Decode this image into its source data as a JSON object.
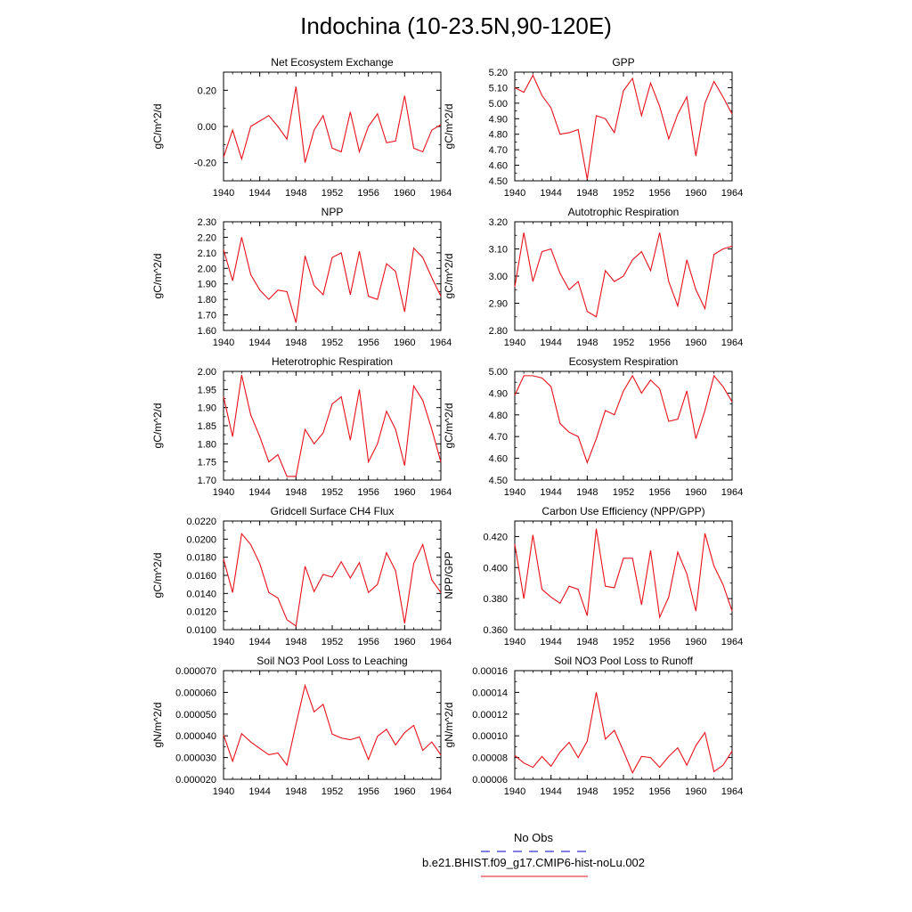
{
  "title": "Indochina (10-23.5N,90-120E)",
  "legend": {
    "items": [
      {
        "label": "No Obs",
        "color": "#3333cc",
        "style": "dashed"
      },
      {
        "label": "b.e21.BHIST.f09_g17.CMIP6-hist-noLu.002",
        "color": "#e8404a",
        "style": "solid"
      }
    ]
  },
  "chart_data": [
    {
      "type": "line",
      "title": "Net Ecosystem Exchange",
      "ylabel": "gC/m^2/d",
      "x": [
        1940,
        1941,
        1942,
        1943,
        1944,
        1945,
        1946,
        1947,
        1948,
        1949,
        1950,
        1951,
        1952,
        1953,
        1954,
        1955,
        1956,
        1957,
        1958,
        1959,
        1960,
        1961,
        1962,
        1963,
        1964
      ],
      "xticks": [
        1940,
        1944,
        1948,
        1952,
        1956,
        1960,
        1964
      ],
      "xlim": [
        1940,
        1964
      ],
      "ylim": [
        -0.3,
        0.3
      ],
      "yticks": [
        -0.2,
        0.0,
        0.2
      ],
      "ytick_labels": [
        "-0.20",
        "0.00",
        "0.20"
      ],
      "series": [
        {
          "color": "#e8101a",
          "values": [
            -0.17,
            -0.02,
            -0.18,
            0.0,
            0.03,
            0.06,
            0.0,
            -0.07,
            0.22,
            -0.2,
            -0.02,
            0.06,
            -0.12,
            -0.14,
            0.08,
            -0.14,
            0.0,
            0.07,
            -0.09,
            -0.08,
            0.17,
            -0.12,
            -0.14,
            -0.02,
            0.01
          ]
        }
      ]
    },
    {
      "type": "line",
      "title": "GPP",
      "ylabel": "gC/m^2/d",
      "x": [
        1940,
        1941,
        1942,
        1943,
        1944,
        1945,
        1946,
        1947,
        1948,
        1949,
        1950,
        1951,
        1952,
        1953,
        1954,
        1955,
        1956,
        1957,
        1958,
        1959,
        1960,
        1961,
        1962,
        1963,
        1964
      ],
      "xticks": [
        1940,
        1944,
        1948,
        1952,
        1956,
        1960,
        1964
      ],
      "xlim": [
        1940,
        1964
      ],
      "ylim": [
        4.5,
        5.2
      ],
      "yticks": [
        4.5,
        4.6,
        4.7,
        4.8,
        4.9,
        5.0,
        5.1,
        5.2
      ],
      "ytick_labels": [
        "4.50",
        "4.60",
        "4.70",
        "4.80",
        "4.90",
        "5.00",
        "5.10",
        "5.20"
      ],
      "series": [
        {
          "color": "#e8101a",
          "values": [
            5.1,
            5.07,
            5.18,
            5.05,
            4.97,
            4.8,
            4.81,
            4.83,
            4.51,
            4.92,
            4.9,
            4.81,
            5.08,
            5.16,
            4.92,
            5.13,
            4.98,
            4.77,
            4.93,
            5.04,
            4.66,
            5.0,
            5.14,
            5.04,
            4.93
          ]
        }
      ]
    },
    {
      "type": "line",
      "title": "NPP",
      "ylabel": "gC/m^2/d",
      "x": [
        1940,
        1941,
        1942,
        1943,
        1944,
        1945,
        1946,
        1947,
        1948,
        1949,
        1950,
        1951,
        1952,
        1953,
        1954,
        1955,
        1956,
        1957,
        1958,
        1959,
        1960,
        1961,
        1962,
        1963,
        1964
      ],
      "xticks": [
        1940,
        1944,
        1948,
        1952,
        1956,
        1960,
        1964
      ],
      "xlim": [
        1940,
        1964
      ],
      "ylim": [
        1.6,
        2.3
      ],
      "yticks": [
        1.6,
        1.7,
        1.8,
        1.9,
        2.0,
        2.1,
        2.2,
        2.3
      ],
      "ytick_labels": [
        "1.60",
        "1.70",
        "1.80",
        "1.90",
        "2.00",
        "2.10",
        "2.20",
        "2.30"
      ],
      "series": [
        {
          "color": "#e8101a",
          "values": [
            2.12,
            1.92,
            2.2,
            1.96,
            1.86,
            1.8,
            1.86,
            1.85,
            1.65,
            2.08,
            1.89,
            1.83,
            2.07,
            2.1,
            1.83,
            2.11,
            1.82,
            1.8,
            2.03,
            1.98,
            1.72,
            2.13,
            2.07,
            1.94,
            1.82
          ]
        }
      ]
    },
    {
      "type": "line",
      "title": "Autotrophic Respiration",
      "ylabel": "gC/m^2/d",
      "x": [
        1940,
        1941,
        1942,
        1943,
        1944,
        1945,
        1946,
        1947,
        1948,
        1949,
        1950,
        1951,
        1952,
        1953,
        1954,
        1955,
        1956,
        1957,
        1958,
        1959,
        1960,
        1961,
        1962,
        1963,
        1964
      ],
      "xticks": [
        1940,
        1944,
        1948,
        1952,
        1956,
        1960,
        1964
      ],
      "xlim": [
        1940,
        1964
      ],
      "ylim": [
        2.8,
        3.2
      ],
      "yticks": [
        2.8,
        2.9,
        3.0,
        3.1,
        3.2
      ],
      "ytick_labels": [
        "2.80",
        "2.90",
        "3.00",
        "3.10",
        "3.20"
      ],
      "series": [
        {
          "color": "#e8101a",
          "values": [
            2.96,
            3.16,
            2.98,
            3.09,
            3.1,
            3.01,
            2.95,
            2.98,
            2.87,
            2.85,
            3.02,
            2.98,
            3.0,
            3.06,
            3.09,
            3.02,
            3.16,
            2.98,
            2.89,
            3.06,
            2.95,
            2.88,
            3.08,
            3.1,
            3.11
          ]
        }
      ]
    },
    {
      "type": "line",
      "title": "Heterotrophic Respiration",
      "ylabel": "gC/m^2/d",
      "x": [
        1940,
        1941,
        1942,
        1943,
        1944,
        1945,
        1946,
        1947,
        1948,
        1949,
        1950,
        1951,
        1952,
        1953,
        1954,
        1955,
        1956,
        1957,
        1958,
        1959,
        1960,
        1961,
        1962,
        1963,
        1964
      ],
      "xticks": [
        1940,
        1944,
        1948,
        1952,
        1956,
        1960,
        1964
      ],
      "xlim": [
        1940,
        1964
      ],
      "ylim": [
        1.7,
        2.0
      ],
      "yticks": [
        1.7,
        1.75,
        1.8,
        1.85,
        1.9,
        1.95,
        2.0
      ],
      "ytick_labels": [
        "1.70",
        "1.75",
        "1.80",
        "1.85",
        "1.90",
        "1.95",
        "2.00"
      ],
      "series": [
        {
          "color": "#e8101a",
          "values": [
            1.93,
            1.82,
            1.99,
            1.88,
            1.82,
            1.75,
            1.77,
            1.71,
            1.71,
            1.84,
            1.8,
            1.83,
            1.91,
            1.93,
            1.81,
            1.95,
            1.75,
            1.8,
            1.89,
            1.84,
            1.74,
            1.96,
            1.92,
            1.84,
            1.75
          ]
        }
      ]
    },
    {
      "type": "line",
      "title": "Ecosystem Respiration",
      "ylabel": "gC/m^2/d",
      "x": [
        1940,
        1941,
        1942,
        1943,
        1944,
        1945,
        1946,
        1947,
        1948,
        1949,
        1950,
        1951,
        1952,
        1953,
        1954,
        1955,
        1956,
        1957,
        1958,
        1959,
        1960,
        1961,
        1962,
        1963,
        1964
      ],
      "xticks": [
        1940,
        1944,
        1948,
        1952,
        1956,
        1960,
        1964
      ],
      "xlim": [
        1940,
        1964
      ],
      "ylim": [
        4.5,
        5.0
      ],
      "yticks": [
        4.5,
        4.6,
        4.7,
        4.8,
        4.9,
        5.0
      ],
      "ytick_labels": [
        "4.50",
        "4.60",
        "4.70",
        "4.80",
        "4.90",
        "5.00"
      ],
      "series": [
        {
          "color": "#e8101a",
          "values": [
            4.89,
            4.98,
            4.98,
            4.97,
            4.93,
            4.76,
            4.72,
            4.7,
            4.58,
            4.69,
            4.82,
            4.8,
            4.91,
            4.98,
            4.9,
            4.96,
            4.92,
            4.77,
            4.78,
            4.91,
            4.69,
            4.82,
            4.98,
            4.93,
            4.86
          ]
        }
      ]
    },
    {
      "type": "line",
      "title": "Gridcell Surface CH4 Flux",
      "ylabel": "gC/m^2/d",
      "x": [
        1940,
        1941,
        1942,
        1943,
        1944,
        1945,
        1946,
        1947,
        1948,
        1949,
        1950,
        1951,
        1952,
        1953,
        1954,
        1955,
        1956,
        1957,
        1958,
        1959,
        1960,
        1961,
        1962,
        1963,
        1964
      ],
      "xticks": [
        1940,
        1944,
        1948,
        1952,
        1956,
        1960,
        1964
      ],
      "xlim": [
        1940,
        1964
      ],
      "ylim": [
        0.01,
        0.022
      ],
      "yticks": [
        0.01,
        0.012,
        0.014,
        0.016,
        0.018,
        0.02,
        0.022
      ],
      "ytick_labels": [
        "0.0100",
        "0.0120",
        "0.0140",
        "0.0160",
        "0.0180",
        "0.0200",
        "0.0220"
      ],
      "series": [
        {
          "color": "#e8101a",
          "values": [
            0.0178,
            0.0141,
            0.0206,
            0.0194,
            0.0173,
            0.0141,
            0.0135,
            0.0111,
            0.0104,
            0.017,
            0.0142,
            0.0161,
            0.0158,
            0.0175,
            0.0157,
            0.0174,
            0.0141,
            0.015,
            0.0185,
            0.0165,
            0.0107,
            0.0173,
            0.0194,
            0.0155,
            0.0141
          ]
        }
      ]
    },
    {
      "type": "line",
      "title": "Carbon Use Efficiency (NPP/GPP)",
      "ylabel": "NPP/GPP",
      "x": [
        1940,
        1941,
        1942,
        1943,
        1944,
        1945,
        1946,
        1947,
        1948,
        1949,
        1950,
        1951,
        1952,
        1953,
        1954,
        1955,
        1956,
        1957,
        1958,
        1959,
        1960,
        1961,
        1962,
        1963,
        1964
      ],
      "xticks": [
        1940,
        1944,
        1948,
        1952,
        1956,
        1960,
        1964
      ],
      "xlim": [
        1940,
        1964
      ],
      "ylim": [
        0.36,
        0.43
      ],
      "yticks": [
        0.36,
        0.38,
        0.4,
        0.42
      ],
      "ytick_labels": [
        "0.360",
        "0.380",
        "0.400",
        "0.420"
      ],
      "series": [
        {
          "color": "#e8101a",
          "values": [
            0.415,
            0.38,
            0.421,
            0.386,
            0.381,
            0.377,
            0.388,
            0.386,
            0.369,
            0.425,
            0.388,
            0.387,
            0.406,
            0.406,
            0.376,
            0.411,
            0.368,
            0.381,
            0.41,
            0.396,
            0.372,
            0.422,
            0.401,
            0.389,
            0.372
          ]
        }
      ]
    },
    {
      "type": "line",
      "title": "Soil NO3 Pool Loss to Leaching",
      "ylabel": "gN/m^2/d",
      "x": [
        1940,
        1941,
        1942,
        1943,
        1944,
        1945,
        1946,
        1947,
        1948,
        1949,
        1950,
        1951,
        1952,
        1953,
        1954,
        1955,
        1956,
        1957,
        1958,
        1959,
        1960,
        1961,
        1962,
        1963,
        1964
      ],
      "xticks": [
        1940,
        1944,
        1948,
        1952,
        1956,
        1960,
        1964
      ],
      "xlim": [
        1940,
        1964
      ],
      "ylim": [
        2e-05,
        7e-05
      ],
      "yticks": [
        2e-05,
        3e-05,
        4e-05,
        5e-05,
        6e-05,
        7e-05
      ],
      "ytick_labels": [
        "0.000020",
        "0.000030",
        "0.000040",
        "0.000050",
        "0.000060",
        "0.000070"
      ],
      "series": [
        {
          "color": "#e8101a",
          "values": [
            4.05e-05,
            2.83e-05,
            4.1e-05,
            3.72e-05,
            3.42e-05,
            3.13e-05,
            3.21e-05,
            2.65e-05,
            4.53e-05,
            6.32e-05,
            5.1e-05,
            5.45e-05,
            4.08e-05,
            3.9e-05,
            3.82e-05,
            3.95e-05,
            2.91e-05,
            3.98e-05,
            4.3e-05,
            3.58e-05,
            4.15e-05,
            4.48e-05,
            3.33e-05,
            3.72e-05,
            3.12e-05
          ]
        }
      ]
    },
    {
      "type": "line",
      "title": "Soil NO3 Pool Loss to Runoff",
      "ylabel": "gN/m^2/d",
      "x": [
        1940,
        1941,
        1942,
        1943,
        1944,
        1945,
        1946,
        1947,
        1948,
        1949,
        1950,
        1951,
        1952,
        1953,
        1954,
        1955,
        1956,
        1957,
        1958,
        1959,
        1960,
        1961,
        1962,
        1963,
        1964
      ],
      "xticks": [
        1940,
        1944,
        1948,
        1952,
        1956,
        1960,
        1964
      ],
      "xlim": [
        1940,
        1964
      ],
      "ylim": [
        6e-05,
        0.00016
      ],
      "yticks": [
        6e-05,
        8e-05,
        0.0001,
        0.00012,
        0.00014,
        0.00016
      ],
      "ytick_labels": [
        "0.00006",
        "0.00008",
        "0.00010",
        "0.00012",
        "0.00014",
        "0.00016"
      ],
      "series": [
        {
          "color": "#e8101a",
          "values": [
            8.2e-05,
            7.5e-05,
            7.1e-05,
            8.1e-05,
            7.2e-05,
            8.5e-05,
            9.4e-05,
            8e-05,
            9.5e-05,
            0.00014,
            9.7e-05,
            0.000105,
            8.6e-05,
            6.6e-05,
            8.1e-05,
            8e-05,
            7.1e-05,
            8.1e-05,
            8.9e-05,
            7.3e-05,
            9.1e-05,
            0.000103,
            6.7e-05,
            7.3e-05,
            8.6e-05
          ]
        }
      ]
    }
  ]
}
